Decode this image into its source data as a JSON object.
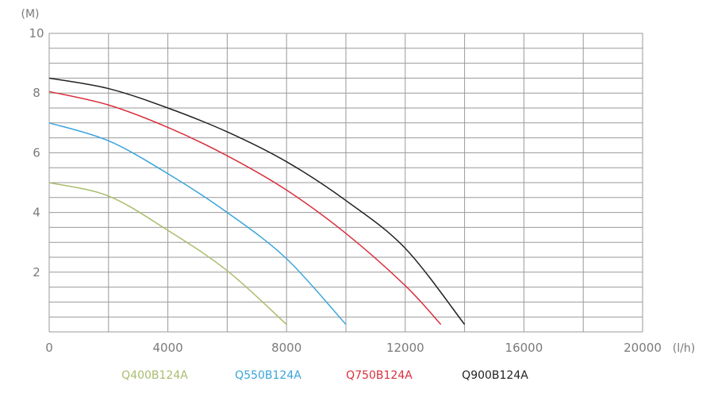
{
  "chart_data": {
    "type": "line",
    "y_unit": "(M)",
    "x_unit": "(l/h)",
    "xlim": [
      0,
      20000
    ],
    "ylim": [
      0,
      10
    ],
    "x_ticks": [
      "0",
      "4000",
      "8000",
      "12000",
      "16000",
      "20000"
    ],
    "y_ticks": [
      "2",
      "4",
      "6",
      "8",
      "10"
    ],
    "grid": true,
    "legend_position": "bottom",
    "series": [
      {
        "name": "Q400B124A",
        "color": "#a9bd6d",
        "points": [
          [
            0,
            5.0
          ],
          [
            2000,
            4.55
          ],
          [
            4000,
            3.4
          ],
          [
            6000,
            2.05
          ],
          [
            8000,
            0.25
          ]
        ]
      },
      {
        "name": "Q550B124A",
        "color": "#3aa4dd",
        "points": [
          [
            0,
            7.0
          ],
          [
            2000,
            6.4
          ],
          [
            4000,
            5.3
          ],
          [
            6000,
            4.0
          ],
          [
            8000,
            2.45
          ],
          [
            10000,
            0.25
          ]
        ]
      },
      {
        "name": "Q750B124A",
        "color": "#d9303e",
        "points": [
          [
            0,
            8.05
          ],
          [
            2000,
            7.6
          ],
          [
            4000,
            6.85
          ],
          [
            6000,
            5.9
          ],
          [
            8000,
            4.75
          ],
          [
            10000,
            3.3
          ],
          [
            12000,
            1.55
          ],
          [
            13200,
            0.25
          ]
        ]
      },
      {
        "name": "Q900B124A",
        "color": "#222222",
        "points": [
          [
            0,
            8.5
          ],
          [
            2000,
            8.15
          ],
          [
            4000,
            7.5
          ],
          [
            6000,
            6.7
          ],
          [
            8000,
            5.7
          ],
          [
            10000,
            4.4
          ],
          [
            12000,
            2.8
          ],
          [
            14000,
            0.25
          ]
        ]
      }
    ]
  }
}
